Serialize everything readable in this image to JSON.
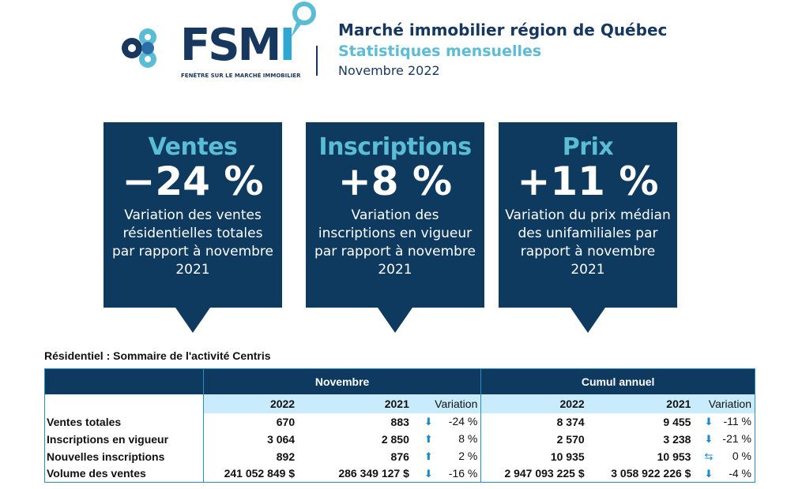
{
  "header": {
    "logo_text": "FSMI",
    "logo_tagline": "FENÊTRE SUR LE MARCHÉ IMMOBILIER",
    "title": "Marché immobilier région de Québec",
    "subtitle": "Statistiques mensuelles",
    "period": "Novembre 2022"
  },
  "cards": [
    {
      "heading": "Ventes",
      "value": "−24 %",
      "description": "Variation des ventes résidentielles totales par rapport à novembre 2021"
    },
    {
      "heading": "Inscriptions",
      "value": "+8 %",
      "description": "Variation des inscriptions en vigueur par rapport à novembre 2021"
    },
    {
      "heading": "Prix",
      "value": "+11 %",
      "description": "Variation du prix médian des unifamiliales par rapport à novembre 2021"
    }
  ],
  "colors": {
    "navy": "#0f3a5f",
    "cyan": "#5bbcd6",
    "light": "#c8ecfb",
    "arrow": "#1a8ac8"
  },
  "table": {
    "title": "Résidentiel : Sommaire de l'activité Centris",
    "groups": [
      "Novembre",
      "Cumul annuel"
    ],
    "columns": [
      "2022",
      "2021",
      "Variation",
      "2022",
      "2021",
      "Variation"
    ],
    "rows": [
      {
        "label": "Ventes totales",
        "nov_2022": "670",
        "nov_2021": "883",
        "nov_icon": "arrow-down",
        "nov_var": "-24 %",
        "cum_2022": "8 374",
        "cum_2021": "9 455",
        "cum_icon": "arrow-down",
        "cum_var": "-11 %"
      },
      {
        "label": "Inscriptions en vigueur",
        "nov_2022": "3 064",
        "nov_2021": "2 850",
        "nov_icon": "arrow-up",
        "nov_var": "8 %",
        "cum_2022": "2 570",
        "cum_2021": "3 238",
        "cum_icon": "arrow-down",
        "cum_var": "-21 %"
      },
      {
        "label": "Nouvelles inscriptions",
        "nov_2022": "892",
        "nov_2021": "876",
        "nov_icon": "arrow-up",
        "nov_var": "2 %",
        "cum_2022": "10 935",
        "cum_2021": "10 953",
        "cum_icon": "stable",
        "cum_var": "0 %"
      },
      {
        "label": "Volume des ventes",
        "nov_2022": "241 052 849  $",
        "nov_2021": "286 349 127  $",
        "nov_icon": "arrow-down",
        "nov_var": "-16 %",
        "cum_2022": "2 947 093 225  $",
        "cum_2021": "3 058 922 226  $",
        "cum_icon": "arrow-down",
        "cum_var": "-4 %"
      }
    ]
  }
}
